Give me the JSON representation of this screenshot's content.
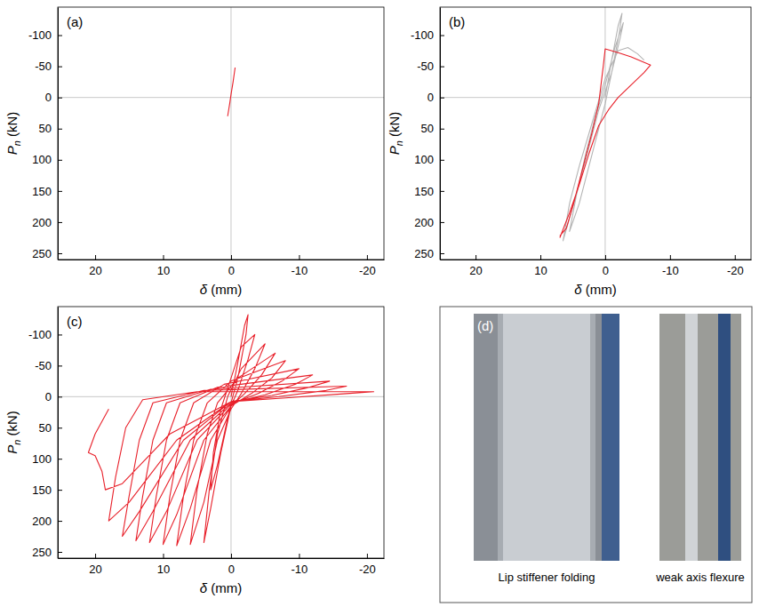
{
  "chart_data": [
    {
      "type": "line",
      "title": "(a)",
      "x_label": "δ (mm)",
      "y_label": "Pn (kN)",
      "xlim": [
        25.5,
        -22.5
      ],
      "ylim": [
        260,
        -145
      ],
      "xticks": [
        20,
        10,
        0,
        -10,
        -20
      ],
      "yticks": [
        -100,
        -50,
        0,
        50,
        100,
        150,
        200,
        250
      ],
      "series": [
        {
          "color": "#e8202a",
          "x": [
            0.5,
            0.2,
            0,
            -0.3,
            -0.6
          ],
          "values": [
            30,
            10,
            -5,
            -25,
            -48
          ]
        }
      ]
    },
    {
      "type": "line",
      "title": "(b)",
      "x_label": "δ (mm)",
      "y_label": "Pn (kN)",
      "xlim": [
        25.5,
        -22.5
      ],
      "ylim": [
        260,
        -145
      ],
      "xticks": [
        20,
        10,
        0,
        -10,
        -20
      ],
      "yticks": [
        -100,
        -50,
        0,
        50,
        100,
        150,
        200,
        250
      ],
      "series": [
        {
          "color": "#b4b4b4",
          "x": [
            0,
            -1,
            -2,
            -2.6,
            -2.2,
            -1,
            0,
            2,
            4,
            5.5,
            4.5,
            3,
            1.5,
            0,
            -1.5,
            -2.8,
            -2.3,
            -1,
            1,
            3,
            5,
            6.5,
            5.5,
            4,
            2,
            0,
            -2,
            -3.5,
            -5,
            -6
          ],
          "values": [
            0,
            -60,
            -115,
            -135,
            -105,
            -40,
            10,
            90,
            170,
            215,
            160,
            90,
            30,
            -20,
            -80,
            -120,
            -95,
            -40,
            20,
            100,
            175,
            230,
            170,
            110,
            40,
            -30,
            -75,
            -80,
            -70,
            -60
          ]
        },
        {
          "color": "#e8202a",
          "x": [
            7,
            6,
            5,
            4,
            3,
            2,
            1,
            0.3,
            0,
            -2,
            -4,
            -7,
            -6,
            -5,
            -3.5,
            -2,
            -0.5,
            1,
            2.5,
            4,
            5.5,
            7
          ],
          "values": [
            222,
            210,
            175,
            135,
            95,
            55,
            10,
            -50,
            -78,
            -72,
            -65,
            -52,
            -40,
            -30,
            -15,
            0,
            20,
            45,
            90,
            140,
            185,
            225
          ]
        }
      ]
    },
    {
      "type": "line",
      "title": "(c)",
      "x_label": "δ (mm)",
      "y_label": "Pn (kN)",
      "xlim": [
        25.5,
        -22.5
      ],
      "ylim": [
        260,
        -145
      ],
      "xticks": [
        20,
        10,
        0,
        -10,
        -20
      ],
      "yticks": [
        -100,
        -50,
        0,
        50,
        100,
        150,
        200,
        250
      ],
      "series": [
        {
          "color": "#e8202a",
          "x": [
            0,
            -1,
            -2,
            -2.5,
            -2.2,
            -1,
            0,
            1,
            2,
            3,
            2.6,
            1.5,
            0,
            -1.5,
            -3.5,
            -2.5,
            -1,
            0,
            1.5,
            3,
            4,
            3.2,
            2,
            0.5,
            -1.5,
            -5,
            -3.5,
            -1.5,
            0,
            2,
            4,
            6,
            5,
            3.5,
            2,
            -1,
            -6.5,
            -4.5,
            -2,
            0,
            3,
            6,
            8,
            7,
            5.5,
            3.5,
            0,
            -8,
            -6,
            -3,
            0,
            4,
            8,
            10,
            9,
            7.5,
            5.5,
            1,
            -10,
            -7.5,
            -4,
            0,
            5,
            9.5,
            12,
            11,
            9.5,
            7.5,
            2,
            -12,
            -9.5,
            -5,
            0,
            6,
            11.5,
            14,
            13,
            11.5,
            9.5,
            3,
            -14.5,
            -11.5,
            -6,
            0,
            7,
            13.5,
            16,
            15,
            13.5,
            11.5,
            4,
            -17,
            -14,
            -7,
            0,
            8,
            15,
            18,
            17,
            15.5,
            13,
            5,
            -21,
            -17,
            -8,
            0,
            9,
            16,
            18.5,
            19,
            20,
            21,
            20,
            18
          ],
          "values": [
            0,
            -55,
            -115,
            -132,
            -100,
            -30,
            10,
            60,
            110,
            150,
            90,
            20,
            -30,
            -80,
            -100,
            -60,
            -10,
            15,
            90,
            180,
            235,
            150,
            60,
            0,
            -45,
            -85,
            -45,
            -5,
            20,
            70,
            170,
            238,
            150,
            60,
            10,
            -30,
            -70,
            -35,
            -5,
            15,
            70,
            180,
            240,
            160,
            70,
            10,
            -25,
            -58,
            -30,
            -5,
            15,
            70,
            190,
            238,
            160,
            70,
            10,
            -20,
            -45,
            -25,
            -5,
            12,
            70,
            185,
            235,
            160,
            70,
            10,
            -15,
            -35,
            -20,
            -3,
            10,
            70,
            185,
            232,
            160,
            70,
            10,
            -12,
            -25,
            -15,
            -2,
            8,
            70,
            185,
            225,
            160,
            70,
            10,
            -10,
            -17,
            -10,
            0,
            8,
            70,
            170,
            200,
            130,
            50,
            5,
            -8,
            -8,
            -5,
            2,
            8,
            60,
            140,
            150,
            120,
            95,
            90,
            60,
            20
          ]
        }
      ]
    }
  ],
  "photo_panel": {
    "label": "(d)",
    "captions": [
      "Lip stiffener folding",
      "weak axis flexure"
    ]
  }
}
